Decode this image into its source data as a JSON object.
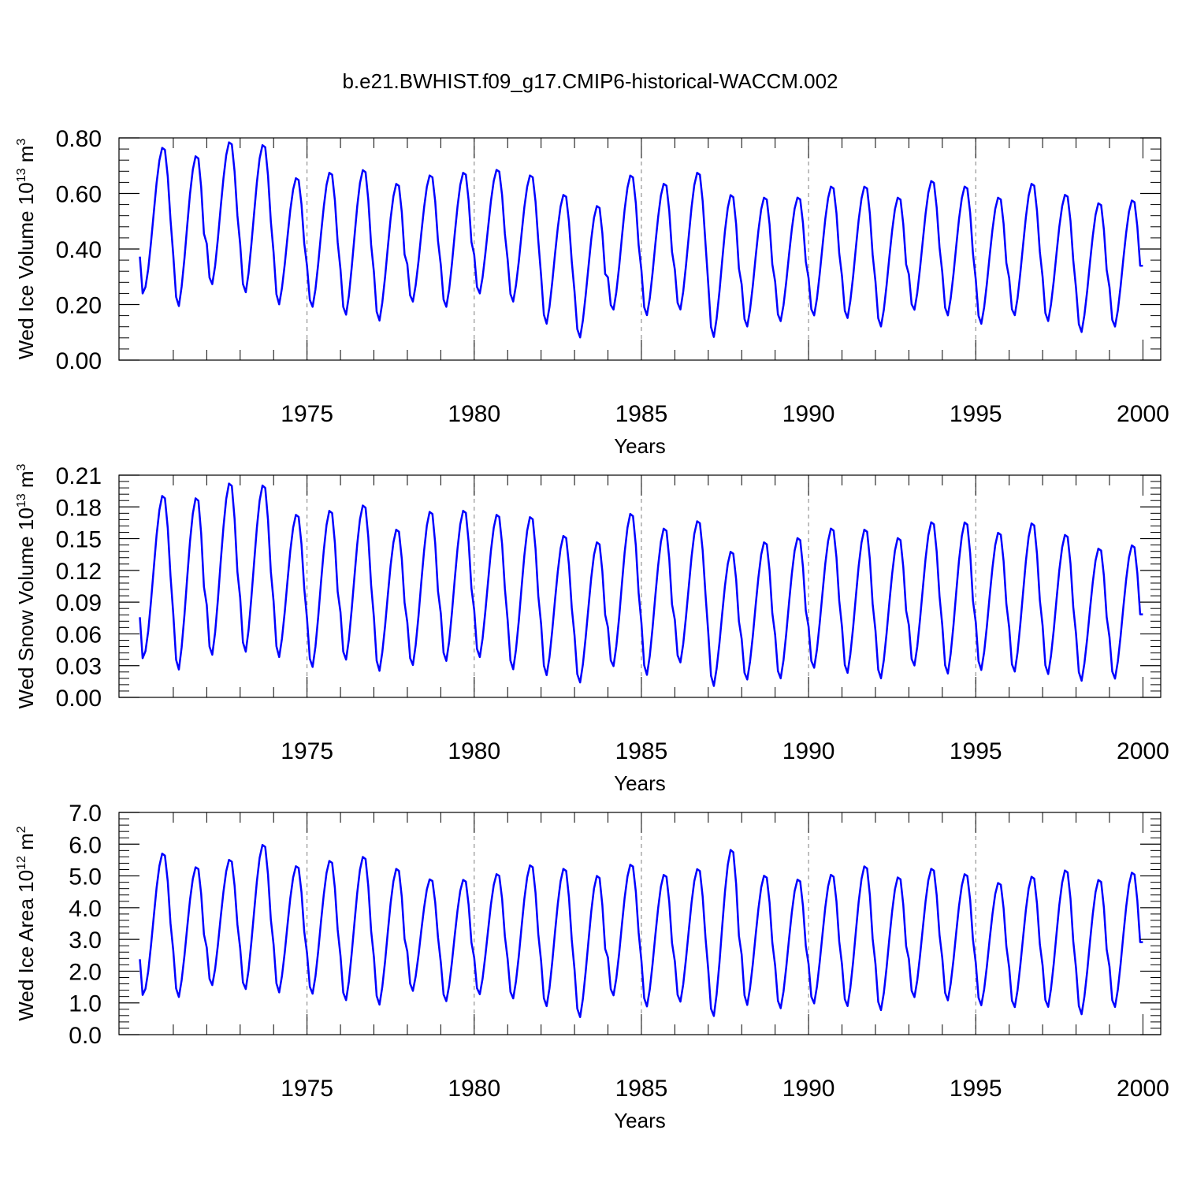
{
  "title": "b.e21.BWHIST.f09_g17.CMIP6-historical-WACCM.002",
  "colors": {
    "series": "#0000ff",
    "axis": "#000000",
    "grid": "#7f7f7f"
  },
  "chart_data": [
    {
      "type": "line",
      "xlabel": "Years",
      "ylabel_parts": [
        "Wed Ice Volume 10",
        "13",
        " m",
        "3"
      ],
      "xlim": [
        1970,
        2000
      ],
      "ylim": [
        0,
        0.8
      ],
      "xticks": [
        1975,
        1980,
        1985,
        1990,
        1995,
        2000
      ],
      "ytick_values": [
        0,
        0.2,
        0.4,
        0.6,
        0.8
      ],
      "ytick_labels": [
        "0.00",
        "0.20",
        "0.40",
        "0.60",
        "0.80"
      ],
      "x_grid": "dashed vertical lines at labeled years",
      "series_shape": "monthly values, seasonal cycle: minimum in Feb, maximum in Sep-Oct",
      "series": [
        {
          "monthly_values_start": "1970-01",
          "annual_max": [
            0.77,
            0.74,
            0.79,
            0.78,
            0.66,
            0.68,
            0.69,
            0.64,
            0.67,
            0.68,
            0.69,
            0.67,
            0.6,
            0.56,
            0.67,
            0.64,
            0.68,
            0.6,
            0.59,
            0.59,
            0.63,
            0.63,
            0.59,
            0.65,
            0.63,
            0.59,
            0.64,
            0.6,
            0.57,
            0.58
          ],
          "annual_min": [
            0.24,
            0.17,
            0.25,
            0.22,
            0.18,
            0.17,
            0.14,
            0.12,
            0.19,
            0.17,
            0.22,
            0.19,
            0.11,
            0.06,
            0.16,
            0.14,
            0.16,
            0.06,
            0.1,
            0.12,
            0.14,
            0.13,
            0.1,
            0.16,
            0.14,
            0.11,
            0.14,
            0.12,
            0.08,
            0.1
          ]
        }
      ]
    },
    {
      "type": "line",
      "xlabel": "Years",
      "ylabel_parts": [
        "Wed Snow Volume 10",
        "13",
        " m",
        "3"
      ],
      "xlim": [
        1970,
        2000
      ],
      "ylim": [
        0,
        0.21
      ],
      "xticks": [
        1975,
        1980,
        1985,
        1990,
        1995,
        2000
      ],
      "ytick_values": [
        0,
        0.03,
        0.06,
        0.09,
        0.12,
        0.15,
        0.18,
        0.21
      ],
      "ytick_labels": [
        "0.00",
        "0.03",
        "0.06",
        "0.09",
        "0.12",
        "0.15",
        "0.18",
        "0.21"
      ],
      "x_grid": "dashed vertical lines at labeled years",
      "series_shape": "monthly values, seasonal cycle: minimum in Feb, maximum in Sep-Oct",
      "series": [
        {
          "monthly_values_start": "1970-01",
          "annual_max": [
            0.192,
            0.19,
            0.204,
            0.202,
            0.174,
            0.178,
            0.183,
            0.16,
            0.177,
            0.178,
            0.174,
            0.172,
            0.154,
            0.148,
            0.175,
            0.161,
            0.168,
            0.139,
            0.148,
            0.152,
            0.161,
            0.16,
            0.152,
            0.167,
            0.167,
            0.157,
            0.166,
            0.155,
            0.142,
            0.145
          ],
          "annual_min": [
            0.037,
            0.019,
            0.033,
            0.036,
            0.032,
            0.022,
            0.029,
            0.019,
            0.024,
            0.028,
            0.032,
            0.02,
            0.015,
            0.008,
            0.023,
            0.015,
            0.027,
            0.005,
            0.011,
            0.012,
            0.022,
            0.017,
            0.012,
            0.024,
            0.016,
            0.02,
            0.018,
            0.016,
            0.01,
            0.012
          ]
        }
      ]
    },
    {
      "type": "line",
      "xlabel": "Years",
      "ylabel_parts": [
        "Wed Ice Area 10",
        "12",
        " m",
        "2"
      ],
      "xlim": [
        1970,
        2000
      ],
      "ylim": [
        0,
        7
      ],
      "xticks": [
        1975,
        1980,
        1985,
        1990,
        1995,
        2000
      ],
      "ytick_values": [
        0,
        1,
        2,
        3,
        4,
        5,
        6,
        7
      ],
      "ytick_labels": [
        "0.0",
        "1.0",
        "2.0",
        "3.0",
        "4.0",
        "5.0",
        "6.0",
        "7.0"
      ],
      "x_grid": "dashed vertical lines at labeled years",
      "series_shape": "monthly values, seasonal cycle: minimum in Feb, maximum in Sep-Oct",
      "series": [
        {
          "monthly_values_start": "1970-01",
          "annual_max": [
            5.75,
            5.32,
            5.55,
            6.03,
            5.35,
            5.52,
            5.65,
            5.27,
            4.93,
            4.92,
            5.1,
            5.38,
            5.27,
            5.05,
            5.4,
            5.08,
            5.26,
            5.88,
            5.05,
            4.93,
            5.08,
            5.35,
            5.0,
            5.27,
            5.1,
            4.82,
            5.02,
            5.22,
            4.92,
            5.15
          ],
          "annual_min": [
            1.25,
            1.0,
            1.38,
            1.23,
            1.15,
            1.1,
            0.88,
            0.75,
            1.22,
            0.88,
            1.1,
            0.95,
            0.7,
            0.35,
            1.05,
            0.7,
            0.85,
            0.35,
            0.75,
            0.65,
            0.8,
            0.7,
            0.58,
            1.0,
            0.9,
            0.75,
            0.68,
            0.68,
            0.45,
            0.68
          ]
        }
      ]
    }
  ]
}
